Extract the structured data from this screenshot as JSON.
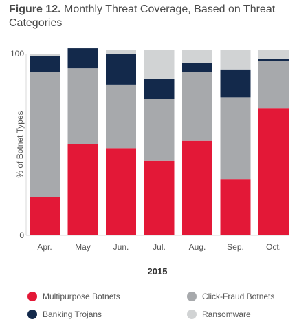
{
  "figure_label": "Figure 12.",
  "title_text": "Monthly Threat Coverage, Based on Threat Categories",
  "chart_data": {
    "type": "bar",
    "stacked": true,
    "title": "Figure 12. Monthly Threat Coverage, Based on Threat Categories",
    "xlabel": "2015",
    "ylabel": "% of Botnet Types",
    "ylim": [
      0,
      100
    ],
    "yticks": [
      0,
      100
    ],
    "grid": false,
    "legend_position": "bottom",
    "categories": [
      "Apr.",
      "May",
      "Jun.",
      "Jul.",
      "Aug.",
      "Sep.",
      "Oct."
    ],
    "series": [
      {
        "name": "Multipurpose Botnets",
        "color": "#e31837",
        "values": [
          21,
          50,
          48,
          41,
          52,
          31,
          70
        ]
      },
      {
        "name": "Click-Fraud Botnets",
        "color": "#a7a9ac",
        "values": [
          69,
          42,
          35,
          34,
          38,
          45,
          26
        ]
      },
      {
        "name": "Banking Trojans",
        "color": "#13294b",
        "values": [
          8.5,
          11,
          17,
          11,
          5,
          15,
          1
        ]
      },
      {
        "name": "Ransomware",
        "color": "#d1d3d4",
        "values": [
          1.5,
          0,
          2,
          16,
          7,
          11,
          5
        ]
      }
    ]
  }
}
